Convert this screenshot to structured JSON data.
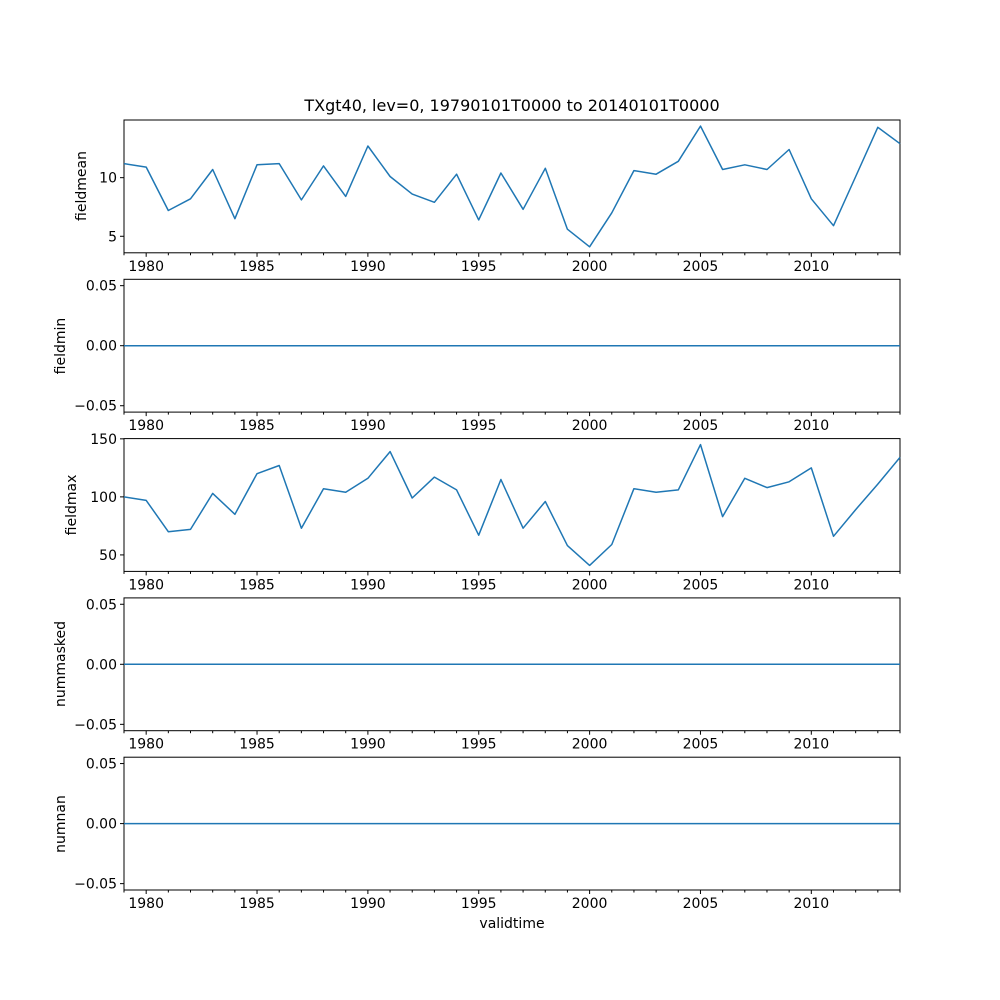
{
  "title": "TXgt40, lev=0, 19790101T0000 to 20140101T0000",
  "xlabel": "validtime",
  "line_color": "#1f77b4",
  "x_axis": {
    "start_year": 1979,
    "end_year": 2014,
    "major_ticks": [
      1980,
      1985,
      1990,
      1995,
      2000,
      2005,
      2010
    ],
    "minor_tick_every_years": 1
  },
  "chart_data": [
    {
      "id": "fieldmean",
      "type": "line",
      "ylabel": "fieldmean",
      "color": "#1f77b4",
      "x_start_year": 1979,
      "values": [
        11.2,
        10.9,
        7.2,
        8.2,
        10.7,
        6.5,
        11.1,
        11.2,
        8.1,
        11.0,
        8.4,
        12.7,
        10.1,
        8.6,
        7.9,
        10.3,
        6.4,
        10.4,
        7.3,
        10.8,
        5.6,
        4.1,
        7.0,
        10.6,
        10.3,
        11.4,
        14.4,
        10.7,
        11.1,
        10.7,
        12.4,
        8.2,
        5.9,
        10.1,
        14.3,
        12.9
      ],
      "yticks": [
        {
          "value": 5,
          "label": "5"
        },
        {
          "value": 10,
          "label": "10"
        }
      ],
      "ylim": [
        3.59,
        14.92
      ]
    },
    {
      "id": "fieldmin",
      "type": "line",
      "ylabel": "fieldmin",
      "color": "#1f77b4",
      "x_start_year": 1979,
      "constant_value": 0,
      "yticks": [
        {
          "value": -0.05,
          "label": "−0.05"
        },
        {
          "value": 0,
          "label": "0.00"
        },
        {
          "value": 0.05,
          "label": "0.05"
        }
      ],
      "ylim": [
        -0.0553,
        0.0553
      ]
    },
    {
      "id": "fieldmax",
      "type": "line",
      "ylabel": "fieldmax",
      "color": "#1f77b4",
      "x_start_year": 1979,
      "values": [
        100,
        97,
        70,
        72,
        103,
        85,
        120,
        127,
        73,
        107,
        104,
        116,
        139,
        99,
        117,
        106,
        67,
        115,
        73,
        96,
        58,
        41,
        59,
        107,
        104,
        106,
        145,
        83,
        116,
        108,
        113,
        125,
        66,
        89,
        111,
        134
      ],
      "yticks": [
        {
          "value": 50,
          "label": "50"
        },
        {
          "value": 100,
          "label": "100"
        },
        {
          "value": 150,
          "label": "150"
        }
      ],
      "ylim": [
        35.8,
        150.2
      ]
    },
    {
      "id": "nummasked",
      "type": "line",
      "ylabel": "nummasked",
      "color": "#1f77b4",
      "x_start_year": 1979,
      "constant_value": 0,
      "yticks": [
        {
          "value": -0.05,
          "label": "−0.05"
        },
        {
          "value": 0,
          "label": "0.00"
        },
        {
          "value": 0.05,
          "label": "0.05"
        }
      ],
      "ylim": [
        -0.0553,
        0.0553
      ]
    },
    {
      "id": "numnan",
      "type": "line",
      "ylabel": "numnan",
      "color": "#1f77b4",
      "x_start_year": 1979,
      "constant_value": 0,
      "yticks": [
        {
          "value": -0.05,
          "label": "−0.05"
        },
        {
          "value": 0,
          "label": "0.00"
        },
        {
          "value": 0.05,
          "label": "0.05"
        }
      ],
      "ylim": [
        -0.0553,
        0.0553
      ]
    }
  ]
}
